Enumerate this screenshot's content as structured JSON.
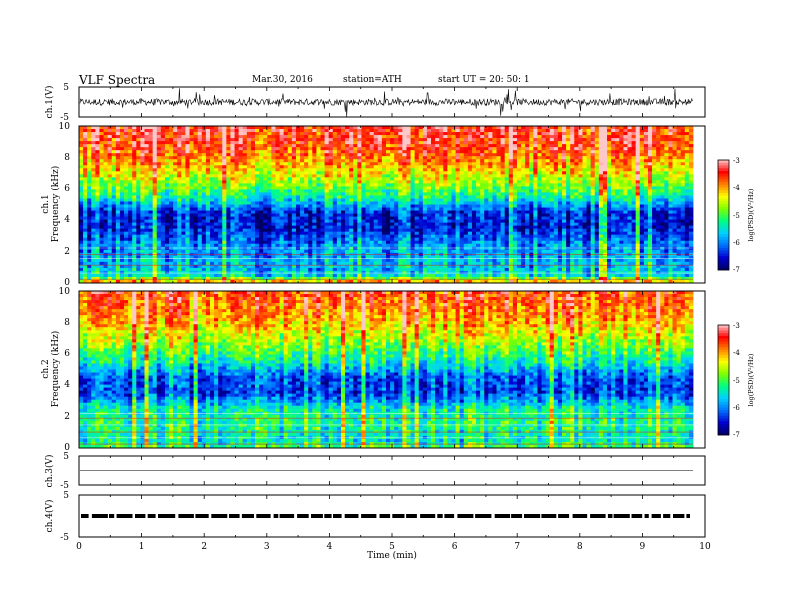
{
  "header": {
    "title": "VLF  Spectra",
    "date": "Mar.30, 2016",
    "station": "station=ATH",
    "start": "start  UT  =    20: 50: 1"
  },
  "colors": {
    "background": "#ffffff",
    "axis": "#000000",
    "trace": "#000000",
    "colormap": [
      "#000060",
      "#0000d0",
      "#0070ff",
      "#00d0ff",
      "#00ff80",
      "#80ff00",
      "#ffff00",
      "#ff8000",
      "#ff0000",
      "#ffc8c8"
    ]
  },
  "chart_data": [
    {
      "type": "line",
      "panel": "ch1-waveform",
      "ylabel": "ch.1(V)",
      "ylim": [
        -5,
        5
      ],
      "yticks": [
        "5",
        "-5"
      ],
      "xlim": [
        0,
        10
      ],
      "description_level": 0
    },
    {
      "type": "heatmap",
      "panel": "ch1-spectrogram",
      "ylabel_channel": "ch.1",
      "ylabel": "Frequency  (kHz)",
      "ylim": [
        0,
        10
      ],
      "yticks": [
        "0",
        "2",
        "4",
        "6",
        "8",
        "10"
      ],
      "xlim": [
        0,
        10
      ],
      "colorbar": {
        "label": "log(PSD)(V²/Hz)",
        "range": [
          -7,
          -3
        ],
        "ticks": [
          "-3",
          "-4",
          "-5",
          "-6",
          "-7"
        ]
      },
      "log_psd_profile": [
        {
          "freq_khz": 0.0,
          "log_psd": -3.8
        },
        {
          "freq_khz": 0.5,
          "log_psd": -5.6
        },
        {
          "freq_khz": 1.5,
          "log_psd": -5.8
        },
        {
          "freq_khz": 2.5,
          "log_psd": -6.0
        },
        {
          "freq_khz": 3.5,
          "log_psd": -6.5
        },
        {
          "freq_khz": 4.5,
          "log_psd": -6.4
        },
        {
          "freq_khz": 5.5,
          "log_psd": -5.3
        },
        {
          "freq_khz": 6.5,
          "log_psd": -4.6
        },
        {
          "freq_khz": 7.5,
          "log_psd": -4.1
        },
        {
          "freq_khz": 8.5,
          "log_psd": -3.6
        },
        {
          "freq_khz": 10.0,
          "log_psd": -3.4
        }
      ]
    },
    {
      "type": "heatmap",
      "panel": "ch2-spectrogram",
      "ylabel_channel": "ch.2",
      "ylabel": "Frequency  (kHz)",
      "ylim": [
        0,
        10
      ],
      "yticks": [
        "0",
        "2",
        "4",
        "6",
        "8",
        "10"
      ],
      "xlim": [
        0,
        10
      ],
      "colorbar": {
        "label": "log(PSD)(V²/Hz)",
        "range": [
          -7,
          -3
        ],
        "ticks": [
          "-3",
          "-4",
          "-5",
          "-6",
          "-7"
        ]
      },
      "log_psd_profile": [
        {
          "freq_khz": 0.0,
          "log_psd": -5.0
        },
        {
          "freq_khz": 0.5,
          "log_psd": -5.5
        },
        {
          "freq_khz": 1.5,
          "log_psd": -5.2
        },
        {
          "freq_khz": 2.5,
          "log_psd": -5.4
        },
        {
          "freq_khz": 3.5,
          "log_psd": -6.3
        },
        {
          "freq_khz": 4.5,
          "log_psd": -6.2
        },
        {
          "freq_khz": 5.5,
          "log_psd": -5.4
        },
        {
          "freq_khz": 6.5,
          "log_psd": -4.8
        },
        {
          "freq_khz": 7.5,
          "log_psd": -4.3
        },
        {
          "freq_khz": 8.5,
          "log_psd": -3.9
        },
        {
          "freq_khz": 10.0,
          "log_psd": -3.6
        }
      ]
    },
    {
      "type": "line",
      "panel": "ch3-waveform",
      "ylabel": "ch.3(V)",
      "ylim": [
        -5,
        5
      ],
      "yticks": [
        "5",
        "-5"
      ],
      "xlim": [
        0,
        10
      ],
      "description_level": 0
    },
    {
      "type": "line",
      "panel": "ch4-waveform",
      "ylabel": "ch.4(V)",
      "ylim": [
        -5,
        5
      ],
      "yticks": [
        "5",
        "-5"
      ],
      "xlim": [
        0,
        10
      ],
      "description_level": 0,
      "xlabel": "Time  (min)",
      "xticks": [
        "0",
        "1",
        "2",
        "3",
        "4",
        "5",
        "6",
        "7",
        "8",
        "9",
        "10"
      ]
    }
  ]
}
